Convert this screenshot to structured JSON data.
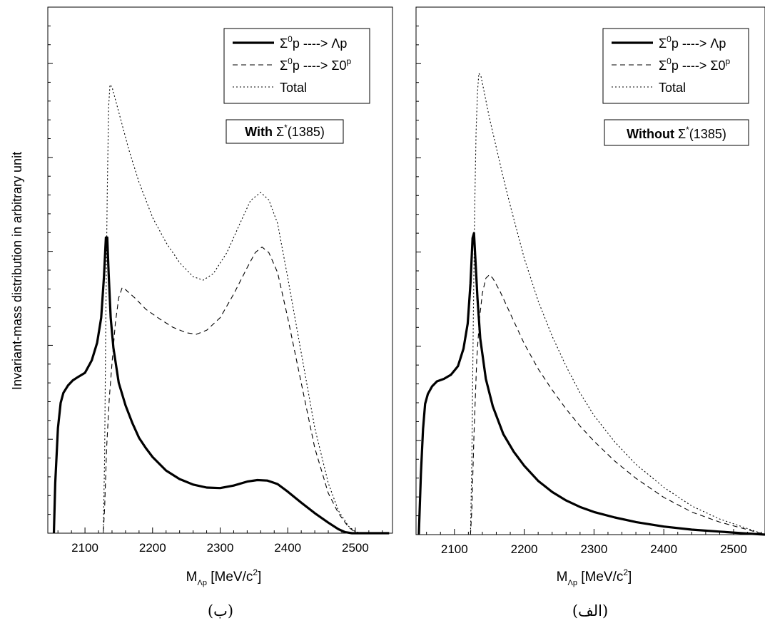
{
  "y_axis_label": "Invariant-mass distribution in arbitrary unit",
  "chart_data": [
    {
      "type": "line",
      "caption": "(ب)",
      "annotation": {
        "bold": "With",
        "rest": " Σ",
        "sup": "*",
        "tail": "(1385)"
      },
      "xlabel": {
        "main": "M",
        "sub": "Λp",
        "unit": " [MeV/c",
        "unit_sup": "2",
        "close": "]"
      },
      "xlim": [
        2045,
        2555
      ],
      "ylim": [
        0,
        1
      ],
      "xticks": [
        2100,
        2200,
        2300,
        2400,
        2500
      ],
      "series": [
        {
          "name_parts": [
            "Σ",
            "0",
            "p ----> Λp"
          ],
          "style": "solid",
          "points": [
            [
              2054,
              0
            ],
            [
              2056,
              0.1
            ],
            [
              2060,
              0.21
            ],
            [
              2064,
              0.26
            ],
            [
              2068,
              0.28
            ],
            [
              2075,
              0.295
            ],
            [
              2082,
              0.305
            ],
            [
              2090,
              0.312
            ],
            [
              2100,
              0.32
            ],
            [
              2110,
              0.345
            ],
            [
              2118,
              0.38
            ],
            [
              2124,
              0.43
            ],
            [
              2128,
              0.51
            ],
            [
              2131,
              0.59
            ],
            [
              2133,
              0.59
            ],
            [
              2135,
              0.52
            ],
            [
              2138,
              0.43
            ],
            [
              2142,
              0.37
            ],
            [
              2150,
              0.3
            ],
            [
              2160,
              0.255
            ],
            [
              2170,
              0.22
            ],
            [
              2180,
              0.19
            ],
            [
              2190,
              0.17
            ],
            [
              2200,
              0.152
            ],
            [
              2220,
              0.125
            ],
            [
              2240,
              0.108
            ],
            [
              2260,
              0.097
            ],
            [
              2280,
              0.091
            ],
            [
              2300,
              0.09
            ],
            [
              2320,
              0.095
            ],
            [
              2340,
              0.103
            ],
            [
              2355,
              0.106
            ],
            [
              2370,
              0.105
            ],
            [
              2385,
              0.098
            ],
            [
              2400,
              0.083
            ],
            [
              2420,
              0.061
            ],
            [
              2440,
              0.04
            ],
            [
              2460,
              0.021
            ],
            [
              2475,
              0.008
            ],
            [
              2485,
              0.002
            ],
            [
              2495,
              0
            ],
            [
              2550,
              0
            ]
          ]
        },
        {
          "name_parts": [
            "Σ",
            "0",
            "p ----> Σ",
            "0",
            "p"
          ],
          "style": "dashed",
          "points": [
            [
              2054,
              0
            ],
            [
              2127,
              0
            ],
            [
              2129,
              0.05
            ],
            [
              2132,
              0.17
            ],
            [
              2136,
              0.27
            ],
            [
              2140,
              0.34
            ],
            [
              2145,
              0.42
            ],
            [
              2150,
              0.47
            ],
            [
              2155,
              0.49
            ],
            [
              2160,
              0.486
            ],
            [
              2175,
              0.468
            ],
            [
              2190,
              0.447
            ],
            [
              2210,
              0.428
            ],
            [
              2230,
              0.411
            ],
            [
              2250,
              0.4
            ],
            [
              2265,
              0.397
            ],
            [
              2280,
              0.405
            ],
            [
              2300,
              0.43
            ],
            [
              2320,
              0.477
            ],
            [
              2340,
              0.53
            ],
            [
              2352,
              0.56
            ],
            [
              2362,
              0.571
            ],
            [
              2372,
              0.56
            ],
            [
              2385,
              0.52
            ],
            [
              2400,
              0.43
            ],
            [
              2420,
              0.3
            ],
            [
              2440,
              0.17
            ],
            [
              2460,
              0.08
            ],
            [
              2475,
              0.04
            ],
            [
              2490,
              0.012
            ],
            [
              2500,
              0.002
            ],
            [
              2510,
              0
            ],
            [
              2550,
              0
            ]
          ]
        },
        {
          "name_parts": [
            "Total"
          ],
          "style": "dotted",
          "points": [
            [
              2054,
              0
            ],
            [
              2127,
              0
            ],
            [
              2129,
              0.15
            ],
            [
              2131,
              0.45
            ],
            [
              2133,
              0.68
            ],
            [
              2135,
              0.85
            ],
            [
              2137,
              0.895
            ],
            [
              2140,
              0.89
            ],
            [
              2146,
              0.86
            ],
            [
              2155,
              0.815
            ],
            [
              2165,
              0.765
            ],
            [
              2180,
              0.7
            ],
            [
              2200,
              0.63
            ],
            [
              2220,
              0.58
            ],
            [
              2240,
              0.54
            ],
            [
              2260,
              0.512
            ],
            [
              2275,
              0.505
            ],
            [
              2290,
              0.518
            ],
            [
              2310,
              0.56
            ],
            [
              2330,
              0.62
            ],
            [
              2345,
              0.664
            ],
            [
              2360,
              0.68
            ],
            [
              2372,
              0.665
            ],
            [
              2385,
              0.618
            ],
            [
              2400,
              0.51
            ],
            [
              2420,
              0.36
            ],
            [
              2440,
              0.21
            ],
            [
              2460,
              0.1
            ],
            [
              2475,
              0.045
            ],
            [
              2490,
              0.014
            ],
            [
              2500,
              0.003
            ],
            [
              2510,
              0
            ],
            [
              2550,
              0
            ]
          ]
        }
      ]
    },
    {
      "type": "line",
      "caption": "(الف)",
      "annotation": {
        "bold": "Without",
        "rest": "  Σ",
        "sup": "*",
        "tail": "(1385)"
      },
      "xlabel": {
        "main": "M",
        "sub": "Λp",
        "unit": " [MeV/c",
        "unit_sup": "2",
        "close": "]"
      },
      "xlim": [
        2045,
        2545
      ],
      "ylim": [
        0,
        1
      ],
      "xticks": [
        2100,
        2200,
        2300,
        2400,
        2500
      ],
      "series": [
        {
          "name_parts": [
            "Σ",
            "0",
            "p ----> Λp"
          ],
          "style": "solid",
          "points": [
            [
              2049,
              0
            ],
            [
              2052,
              0.12
            ],
            [
              2055,
              0.21
            ],
            [
              2058,
              0.26
            ],
            [
              2062,
              0.28
            ],
            [
              2068,
              0.295
            ],
            [
              2075,
              0.305
            ],
            [
              2085,
              0.31
            ],
            [
              2095,
              0.318
            ],
            [
              2105,
              0.335
            ],
            [
              2113,
              0.37
            ],
            [
              2119,
              0.42
            ],
            [
              2123,
              0.5
            ],
            [
              2126,
              0.59
            ],
            [
              2128,
              0.6
            ],
            [
              2130,
              0.55
            ],
            [
              2133,
              0.47
            ],
            [
              2137,
              0.39
            ],
            [
              2145,
              0.31
            ],
            [
              2155,
              0.255
            ],
            [
              2170,
              0.2
            ],
            [
              2185,
              0.165
            ],
            [
              2200,
              0.137
            ],
            [
              2220,
              0.107
            ],
            [
              2240,
              0.085
            ],
            [
              2260,
              0.068
            ],
            [
              2280,
              0.055
            ],
            [
              2300,
              0.045
            ],
            [
              2330,
              0.034
            ],
            [
              2360,
              0.025
            ],
            [
              2400,
              0.016
            ],
            [
              2440,
              0.01
            ],
            [
              2480,
              0.006
            ],
            [
              2510,
              0.003
            ],
            [
              2545,
              0
            ]
          ]
        },
        {
          "name_parts": [
            "Σ",
            "0",
            "p ----> Σ",
            "0",
            "p"
          ],
          "style": "dashed",
          "points": [
            [
              2049,
              0
            ],
            [
              2123,
              0
            ],
            [
              2125,
              0.05
            ],
            [
              2128,
              0.2
            ],
            [
              2132,
              0.35
            ],
            [
              2136,
              0.43
            ],
            [
              2140,
              0.48
            ],
            [
              2145,
              0.51
            ],
            [
              2150,
              0.517
            ],
            [
              2155,
              0.51
            ],
            [
              2165,
              0.485
            ],
            [
              2180,
              0.44
            ],
            [
              2200,
              0.38
            ],
            [
              2220,
              0.33
            ],
            [
              2240,
              0.288
            ],
            [
              2260,
              0.25
            ],
            [
              2280,
              0.216
            ],
            [
              2300,
              0.186
            ],
            [
              2330,
              0.146
            ],
            [
              2360,
              0.112
            ],
            [
              2400,
              0.074
            ],
            [
              2440,
              0.045
            ],
            [
              2480,
              0.025
            ],
            [
              2520,
              0.01
            ],
            [
              2545,
              0
            ]
          ]
        },
        {
          "name_parts": [
            "Total"
          ],
          "style": "dotted",
          "points": [
            [
              2049,
              0
            ],
            [
              2123,
              0
            ],
            [
              2125,
              0.15
            ],
            [
              2127,
              0.42
            ],
            [
              2129,
              0.65
            ],
            [
              2131,
              0.8
            ],
            [
              2133,
              0.88
            ],
            [
              2135,
              0.918
            ],
            [
              2138,
              0.912
            ],
            [
              2142,
              0.885
            ],
            [
              2150,
              0.83
            ],
            [
              2160,
              0.77
            ],
            [
              2170,
              0.71
            ],
            [
              2180,
              0.655
            ],
            [
              2200,
              0.55
            ],
            [
              2220,
              0.465
            ],
            [
              2240,
              0.395
            ],
            [
              2260,
              0.335
            ],
            [
              2280,
              0.282
            ],
            [
              2300,
              0.237
            ],
            [
              2330,
              0.184
            ],
            [
              2360,
              0.14
            ],
            [
              2400,
              0.094
            ],
            [
              2440,
              0.057
            ],
            [
              2480,
              0.031
            ],
            [
              2520,
              0.012
            ],
            [
              2545,
              0
            ]
          ]
        }
      ]
    }
  ]
}
